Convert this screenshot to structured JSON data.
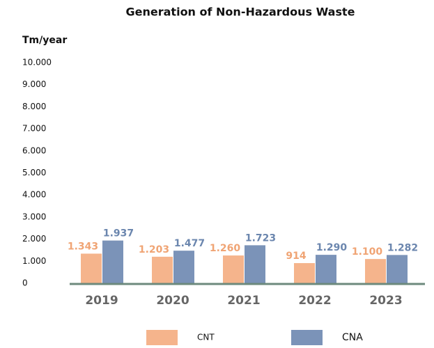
{
  "chart_data": {
    "type": "bar",
    "title": "Generation of Non-Hazardous Waste",
    "y_label": "Tm/year",
    "categories": [
      "2019",
      "2020",
      "2021",
      "2022",
      "2023"
    ],
    "series": [
      {
        "name": "CNT",
        "color": "#f5b48c",
        "label_color": "#f0a474",
        "values": [
          1343,
          1203,
          1260,
          914,
          1100
        ],
        "value_labels": [
          "1.343",
          "1.203",
          "1.260",
          "914",
          "1.100"
        ]
      },
      {
        "name": "CNA",
        "color": "#7b93b8",
        "label_color": "#6b86ae",
        "values": [
          1937,
          1477,
          1723,
          1290,
          1282
        ],
        "value_labels": [
          "1.937",
          "1.477",
          "1.723",
          "1.290",
          "1.282"
        ]
      }
    ],
    "ylim": [
      0,
      10000
    ],
    "yticks": [
      0,
      {
        "value": 1000,
        "label": "1.000"
      },
      {
        "value": 2000,
        "label": "2.000"
      },
      {
        "value": 3000,
        "label": "3.000"
      },
      {
        "value": 4000,
        "label": "4.000"
      },
      {
        "value": 5000,
        "label": "5.000"
      },
      {
        "value": 6000,
        "label": "6.000"
      },
      {
        "value": 7000,
        "label": "7.000"
      },
      {
        "value": 8000,
        "label": "8.000"
      },
      {
        "value": 9000,
        "label": "9.000"
      },
      {
        "value": 10000,
        "label": "10.000"
      }
    ],
    "grid": false
  }
}
